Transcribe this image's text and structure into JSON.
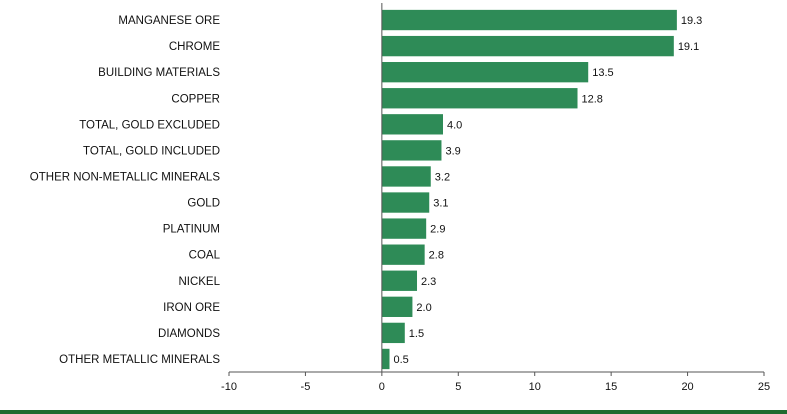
{
  "chart_data": {
    "type": "bar",
    "orientation": "horizontal",
    "categories": [
      "MANGANESE ORE",
      "CHROME",
      "BUILDING MATERIALS",
      "COPPER",
      "TOTAL, GOLD EXCLUDED",
      "TOTAL, GOLD INCLUDED",
      "OTHER NON-METALLIC MINERALS",
      "GOLD",
      "PLATINUM",
      "COAL",
      "NICKEL",
      "IRON ORE",
      "DIAMONDS",
      "OTHER METALLIC MINERALS"
    ],
    "values": [
      19.3,
      19.1,
      13.5,
      12.8,
      4.0,
      3.9,
      3.2,
      3.1,
      2.9,
      2.8,
      2.3,
      2.0,
      1.5,
      0.5
    ],
    "value_labels": [
      "19.3",
      "19.1",
      "13.5",
      "12.8",
      "4.0",
      "3.9",
      "3.2",
      "3.1",
      "2.9",
      "2.8",
      "2.3",
      "2.0",
      "1.5",
      "0.5"
    ],
    "xlim": [
      -10,
      25
    ],
    "x_ticks": [
      -10,
      -5,
      0,
      5,
      10,
      15,
      20,
      25
    ],
    "x_tick_labels": [
      "-10",
      "-5",
      "0",
      "5",
      "10",
      "15",
      "20",
      "25"
    ],
    "grid": false,
    "colors": {
      "bar": "#2e8b57",
      "axis": "#555555",
      "bottom_rule": "#1f6b2f"
    }
  }
}
